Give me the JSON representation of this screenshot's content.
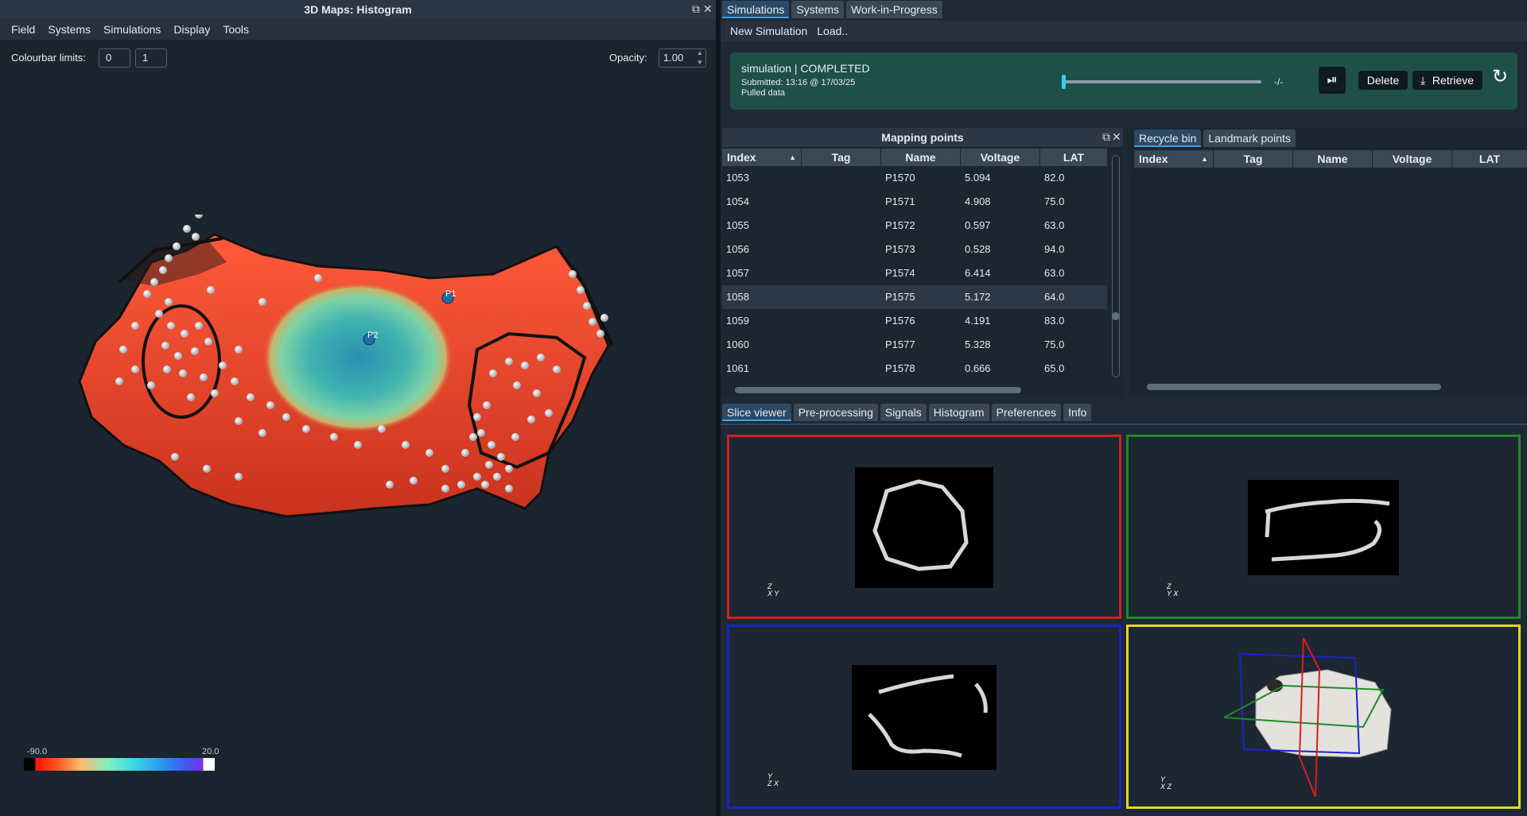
{
  "left_window": {
    "title": "3D Maps: Histogram",
    "menu": [
      "Field",
      "Systems",
      "Simulations",
      "Display",
      "Tools"
    ],
    "colourbar_label": "Colourbar limits:",
    "colourbar_min": "0",
    "colourbar_max": "1",
    "opacity_label": "Opacity:",
    "opacity_value": "1.00",
    "point_labels": [
      "P1",
      "P2"
    ],
    "legend": {
      "min": "-90.0",
      "max": "20.0"
    },
    "colors": {
      "tissue": "#e8402a",
      "scar": "#3fb3b0",
      "background": "#1a2530"
    }
  },
  "right_tabs": [
    "Simulations",
    "Systems",
    "Work-in-Progress"
  ],
  "sim_toolbar": [
    "New Simulation",
    "Load.."
  ],
  "simulation": {
    "status": "simulation | COMPLETED",
    "submitted": "Submitted: 13:16 @ 17/03/25",
    "pulled": "Pulled data",
    "progress_label": "-/-",
    "progress": 0.0,
    "delete": "Delete",
    "retrieve": "Retrieve"
  },
  "mapping": {
    "title": "Mapping points",
    "columns": [
      "Index",
      "Tag",
      "Name",
      "Voltage",
      "LAT"
    ],
    "rows": [
      [
        "1053",
        "",
        "P1570",
        "5.094",
        "82.0"
      ],
      [
        "1054",
        "",
        "P1571",
        "4.908",
        "75.0"
      ],
      [
        "1055",
        "",
        "P1572",
        "0.597",
        "63.0"
      ],
      [
        "1056",
        "",
        "P1573",
        "0.528",
        "94.0"
      ],
      [
        "1057",
        "",
        "P1574",
        "6.414",
        "63.0"
      ],
      [
        "1058",
        "",
        "P1575",
        "5.172",
        "64.0"
      ],
      [
        "1059",
        "",
        "P1576",
        "4.191",
        "83.0"
      ],
      [
        "1060",
        "",
        "P1577",
        "5.328",
        "75.0"
      ],
      [
        "1061",
        "",
        "P1578",
        "0.666",
        "65.0"
      ]
    ]
  },
  "side_tabs": [
    "Recycle bin",
    "Landmark points"
  ],
  "recycle": {
    "columns": [
      "Index",
      "Tag",
      "Name",
      "Voltage",
      "LAT"
    ]
  },
  "bottom_tabs": [
    "Slice viewer",
    "Pre-processing",
    "Signals",
    "Histogram",
    "Preferences",
    "Info"
  ],
  "viewports": {
    "axial_axes": [
      "Z",
      "X",
      "Y"
    ],
    "coronal_axes": [
      "Z",
      "Y",
      "X"
    ],
    "sagittal_axes": [
      "Y",
      "Z",
      "X"
    ],
    "volume_axes": [
      "Y",
      "X",
      "Z"
    ]
  }
}
